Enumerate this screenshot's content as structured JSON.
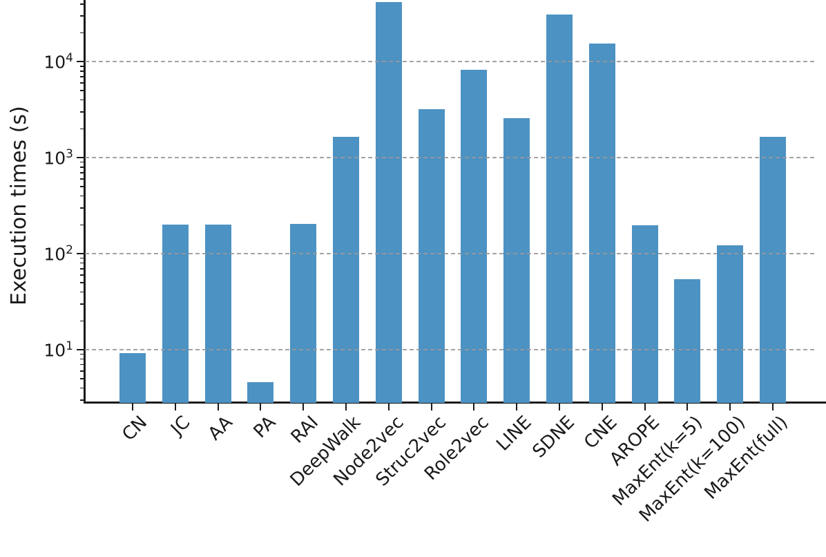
{
  "chart_data": {
    "type": "bar",
    "title": "",
    "xlabel": "",
    "ylabel": "Execution times (s)",
    "yscale": "log",
    "ylim": [
      2.8,
      44000
    ],
    "y_ticks": [
      10,
      100,
      1000,
      10000
    ],
    "grid": "horizontal dashed at major y ticks, drawn over bars",
    "legend": "none",
    "bar_color": "#4C92C3",
    "axis_color": "#1a1a1a",
    "grid_color": "#999999",
    "categories": [
      "CN",
      "JC",
      "AA",
      "PA",
      "RAI",
      "DeepWalk",
      "Node2vec",
      "Struc2vec",
      "Role2vec",
      "LINE",
      "SDNE",
      "CNE",
      "AROPE",
      "MaxEnt(k=5)",
      "MaxEnt(k=100)",
      "MaxEnt(full)"
    ],
    "values": [
      9.2,
      200,
      200,
      4.6,
      205,
      1650,
      42000,
      3200,
      8200,
      2600,
      31000,
      15500,
      198,
      54,
      123,
      1650
    ]
  }
}
